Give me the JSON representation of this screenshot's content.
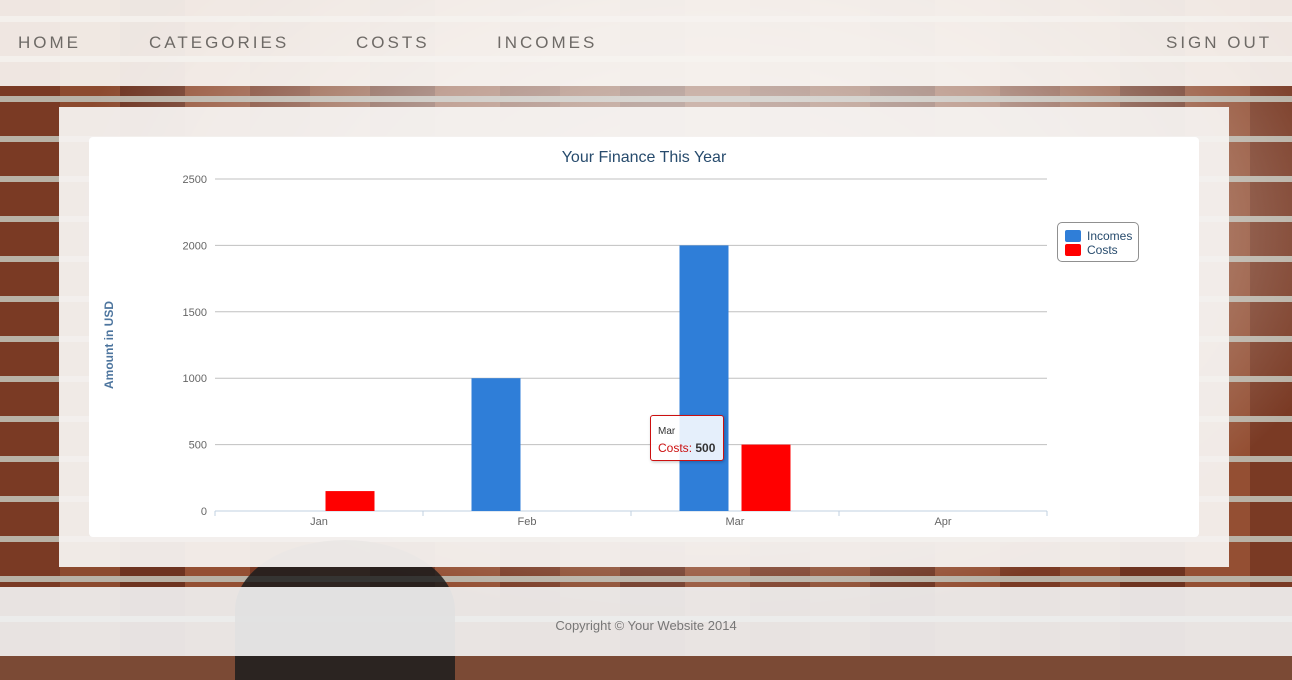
{
  "nav": {
    "home": "HOME",
    "categories": "CATEGORIES",
    "costs": "COSTS",
    "incomes": "INCOMES",
    "sign_out": "SIGN OUT"
  },
  "footer": {
    "copyright": "Copyright © Your Website 2014"
  },
  "colors": {
    "incomes": "#2f7ed8",
    "costs": "#ff0000",
    "title": "#274b6d",
    "axis_title": "#4d759e"
  },
  "tooltip": {
    "category": "Mar",
    "series": "Costs",
    "value_label": "500"
  },
  "chart_data": {
    "type": "bar",
    "title": "Your Finance This Year",
    "xlabel": "",
    "ylabel": "Amount in USD",
    "categories": [
      "Jan",
      "Feb",
      "Mar",
      "Apr"
    ],
    "ylim": [
      0,
      2500
    ],
    "yticks": [
      0,
      500,
      1000,
      1500,
      2000,
      2500
    ],
    "grid": true,
    "legend": "right",
    "series": [
      {
        "name": "Incomes",
        "color": "#2f7ed8",
        "values": [
          0,
          1000,
          2000,
          0
        ]
      },
      {
        "name": "Costs",
        "color": "#ff0000",
        "values": [
          150,
          0,
          500,
          0
        ]
      }
    ]
  }
}
